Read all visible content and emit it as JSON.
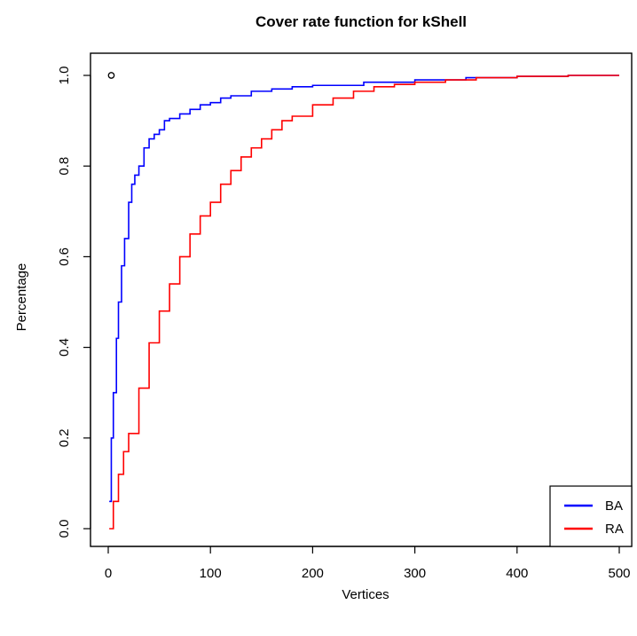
{
  "chart_data": {
    "type": "line",
    "title": "Cover rate function for kShell",
    "xlabel": "Vertices",
    "ylabel": "Percentage",
    "xlim": [
      0,
      500
    ],
    "ylim": [
      0,
      1
    ],
    "xticks": [
      0,
      100,
      200,
      300,
      400,
      500
    ],
    "xtick_labels": [
      "0",
      "100",
      "200",
      "300",
      "400",
      "500"
    ],
    "yticks": [
      0,
      0.2,
      0.4,
      0.6,
      0.8,
      1.0
    ],
    "ytick_labels": [
      "0.0",
      "0.2",
      "0.4",
      "0.6",
      "0.8",
      "1.0"
    ],
    "grid": false,
    "legend": {
      "position": "bottom-right",
      "entries": [
        {
          "name": "BA",
          "color": "#0000FF"
        },
        {
          "name": "RA",
          "color": "#FF0000"
        }
      ]
    },
    "series": [
      {
        "name": "BA",
        "color": "#0000FF",
        "x": [
          1,
          3,
          5,
          8,
          10,
          13,
          16,
          20,
          23,
          26,
          30,
          35,
          40,
          45,
          50,
          55,
          60,
          70,
          80,
          90,
          100,
          110,
          120,
          140,
          160,
          180,
          200,
          250,
          300,
          350,
          400,
          450,
          500
        ],
        "y": [
          0.06,
          0.2,
          0.3,
          0.42,
          0.5,
          0.58,
          0.64,
          0.72,
          0.76,
          0.78,
          0.8,
          0.84,
          0.86,
          0.87,
          0.88,
          0.9,
          0.905,
          0.915,
          0.925,
          0.935,
          0.94,
          0.95,
          0.955,
          0.965,
          0.97,
          0.975,
          0.978,
          0.985,
          0.99,
          0.995,
          0.998,
          1.0,
          1.0
        ]
      },
      {
        "name": "RA",
        "color": "#FF0000",
        "x": [
          1,
          5,
          10,
          15,
          20,
          30,
          40,
          50,
          60,
          70,
          80,
          90,
          100,
          110,
          120,
          130,
          140,
          150,
          160,
          170,
          180,
          200,
          220,
          240,
          260,
          280,
          300,
          330,
          360,
          400,
          450,
          500
        ],
        "y": [
          0.0,
          0.06,
          0.12,
          0.17,
          0.21,
          0.31,
          0.41,
          0.48,
          0.54,
          0.6,
          0.65,
          0.69,
          0.72,
          0.76,
          0.79,
          0.82,
          0.84,
          0.86,
          0.88,
          0.9,
          0.91,
          0.935,
          0.95,
          0.965,
          0.975,
          0.98,
          0.985,
          0.99,
          0.995,
          0.998,
          1.0,
          1.0
        ]
      }
    ],
    "points": [
      {
        "x": 3,
        "y": 1.0
      }
    ]
  }
}
